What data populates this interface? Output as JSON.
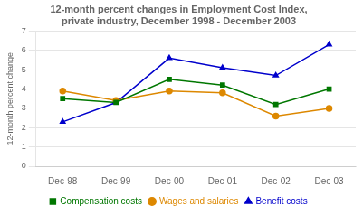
{
  "chart_data": {
    "type": "line",
    "title": "12-month percent changes in Employment Cost Index,\nprivate industry, December 1998 - December 2003",
    "ylabel": "12-month percent change",
    "categories": [
      "Dec-98",
      "Dec-99",
      "Dec-00",
      "Dec-01",
      "Dec-02",
      "Dec-03"
    ],
    "series": [
      {
        "name": "Compensation costs",
        "color": "#007700",
        "marker": "square",
        "values": [
          3.5,
          3.3,
          4.5,
          4.2,
          3.2,
          4.0
        ]
      },
      {
        "name": "Wages and salaries",
        "color": "#dd8800",
        "marker": "circle",
        "values": [
          3.9,
          3.4,
          3.9,
          3.8,
          2.6,
          3.0
        ]
      },
      {
        "name": "Benefit costs",
        "color": "#0000cc",
        "marker": "triangle",
        "values": [
          2.3,
          3.3,
          5.6,
          5.1,
          4.7,
          6.3
        ]
      }
    ],
    "ylim": [
      0,
      7
    ],
    "yticks": [
      0,
      1,
      2,
      3,
      4,
      5,
      6,
      7
    ],
    "grid": true,
    "legend": "bottom"
  }
}
